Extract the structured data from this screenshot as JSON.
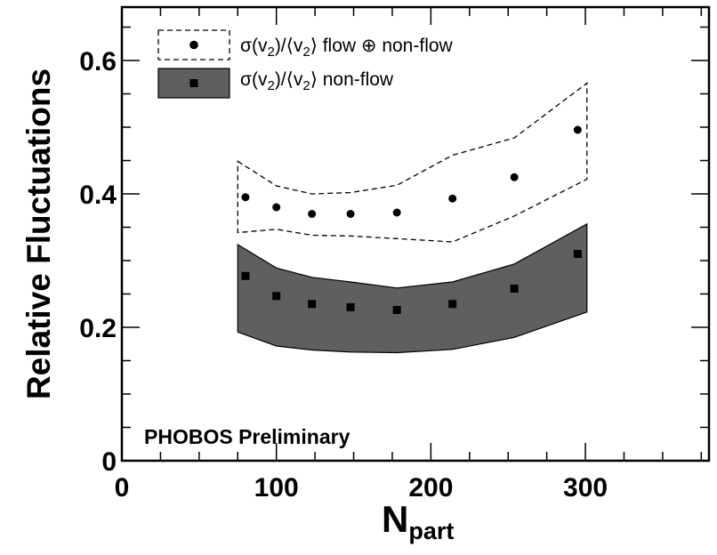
{
  "chart_data": {
    "type": "scatter",
    "title": "",
    "xlabel_main": "N",
    "xlabel_sub": "part",
    "ylabel": "Relative Fluctuations",
    "xlim": [
      0,
      380
    ],
    "ylim": [
      0,
      0.68
    ],
    "x_major_ticks": [
      0,
      100,
      200,
      300
    ],
    "x_tick_labels": [
      "0",
      "100",
      "200",
      "300"
    ],
    "y_major_ticks": [
      0,
      0.2,
      0.4,
      0.6
    ],
    "y_tick_labels": [
      "0",
      "0.2",
      "0.4",
      "0.6"
    ],
    "grid": false,
    "legend_position": "top-left",
    "annotation": "PHOBOS Preliminary",
    "series": [
      {
        "name": "σ(v₂)/⟨v₂⟩ flow ⊕ non-flow",
        "legend": {
          "prefix": "σ(v",
          "sub1": "2",
          "mid": ")/⟨v",
          "sub2": "2",
          "suffix": "⟩ flow ⊕ non-flow"
        },
        "marker": "circle",
        "band_style": "dashed-outline",
        "points": [
          {
            "x": 80,
            "y": 0.395
          },
          {
            "x": 100,
            "y": 0.38
          },
          {
            "x": 123,
            "y": 0.37
          },
          {
            "x": 148,
            "y": 0.37
          },
          {
            "x": 178,
            "y": 0.372
          },
          {
            "x": 214,
            "y": 0.393
          },
          {
            "x": 254,
            "y": 0.425
          },
          {
            "x": 295,
            "y": 0.496
          }
        ],
        "band_upper": [
          [
            75,
            0.449
          ],
          [
            100,
            0.412
          ],
          [
            123,
            0.4
          ],
          [
            148,
            0.402
          ],
          [
            178,
            0.413
          ],
          [
            214,
            0.458
          ],
          [
            254,
            0.484
          ],
          [
            301,
            0.566
          ]
        ],
        "band_lower": [
          [
            75,
            0.342
          ],
          [
            100,
            0.347
          ],
          [
            123,
            0.338
          ],
          [
            148,
            0.337
          ],
          [
            178,
            0.333
          ],
          [
            214,
            0.328
          ],
          [
            254,
            0.367
          ],
          [
            301,
            0.422
          ]
        ]
      },
      {
        "name": "σ(v₂)/⟨v₂⟩ non-flow",
        "legend": {
          "prefix": "σ(v",
          "sub1": "2",
          "mid": ")/⟨v",
          "sub2": "2",
          "suffix": "⟩ non-flow"
        },
        "marker": "square",
        "band_style": "filled",
        "band_color": "#5f5f5f",
        "points": [
          {
            "x": 80,
            "y": 0.277
          },
          {
            "x": 100,
            "y": 0.247
          },
          {
            "x": 123,
            "y": 0.235
          },
          {
            "x": 148,
            "y": 0.23
          },
          {
            "x": 178,
            "y": 0.226
          },
          {
            "x": 214,
            "y": 0.235
          },
          {
            "x": 254,
            "y": 0.258
          },
          {
            "x": 295,
            "y": 0.31
          }
        ],
        "band_upper": [
          [
            75,
            0.324
          ],
          [
            100,
            0.289
          ],
          [
            123,
            0.275
          ],
          [
            148,
            0.268
          ],
          [
            178,
            0.259
          ],
          [
            214,
            0.268
          ],
          [
            254,
            0.295
          ],
          [
            301,
            0.355
          ]
        ],
        "band_lower": [
          [
            75,
            0.193
          ],
          [
            100,
            0.172
          ],
          [
            123,
            0.166
          ],
          [
            148,
            0.163
          ],
          [
            178,
            0.162
          ],
          [
            214,
            0.167
          ],
          [
            254,
            0.185
          ],
          [
            301,
            0.223
          ]
        ]
      }
    ]
  }
}
